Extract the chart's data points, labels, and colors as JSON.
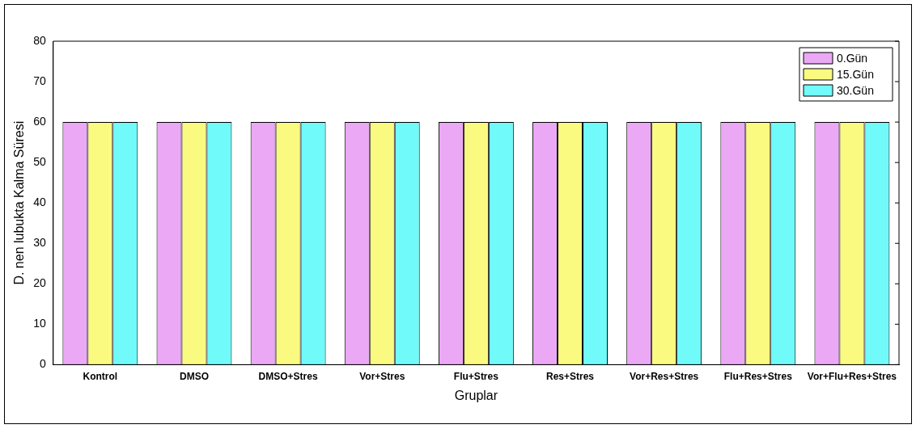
{
  "chart_data": {
    "type": "bar",
    "xlabel": "Gruplar",
    "ylabel": "D. nen lubukta Kalma Süresi",
    "categories": [
      "Kontrol",
      "DMSO",
      "DMSO+Stres",
      "Vor+Stres",
      "Flu+Stres",
      "Res+Stres",
      "Vor+Res+Stres",
      "Flu+Res+Stres",
      "Vor+Flu+Res+Stres"
    ],
    "series": [
      {
        "name": "0.Gün",
        "color": "#eba8f5",
        "values": [
          60,
          60,
          60,
          60,
          60,
          60,
          60,
          60,
          60
        ]
      },
      {
        "name": "15.Gün",
        "color": "#fafa80",
        "values": [
          60,
          60,
          60,
          60,
          60,
          60,
          60,
          60,
          60
        ]
      },
      {
        "name": "30.Gün",
        "color": "#70fafa",
        "values": [
          60,
          60,
          60,
          60,
          60,
          60,
          60,
          60,
          60
        ]
      }
    ],
    "ylim": [
      0,
      80
    ],
    "yticks": [
      0,
      10,
      20,
      30,
      40,
      50,
      60,
      70,
      80
    ],
    "grid": false,
    "legend": "top right"
  }
}
